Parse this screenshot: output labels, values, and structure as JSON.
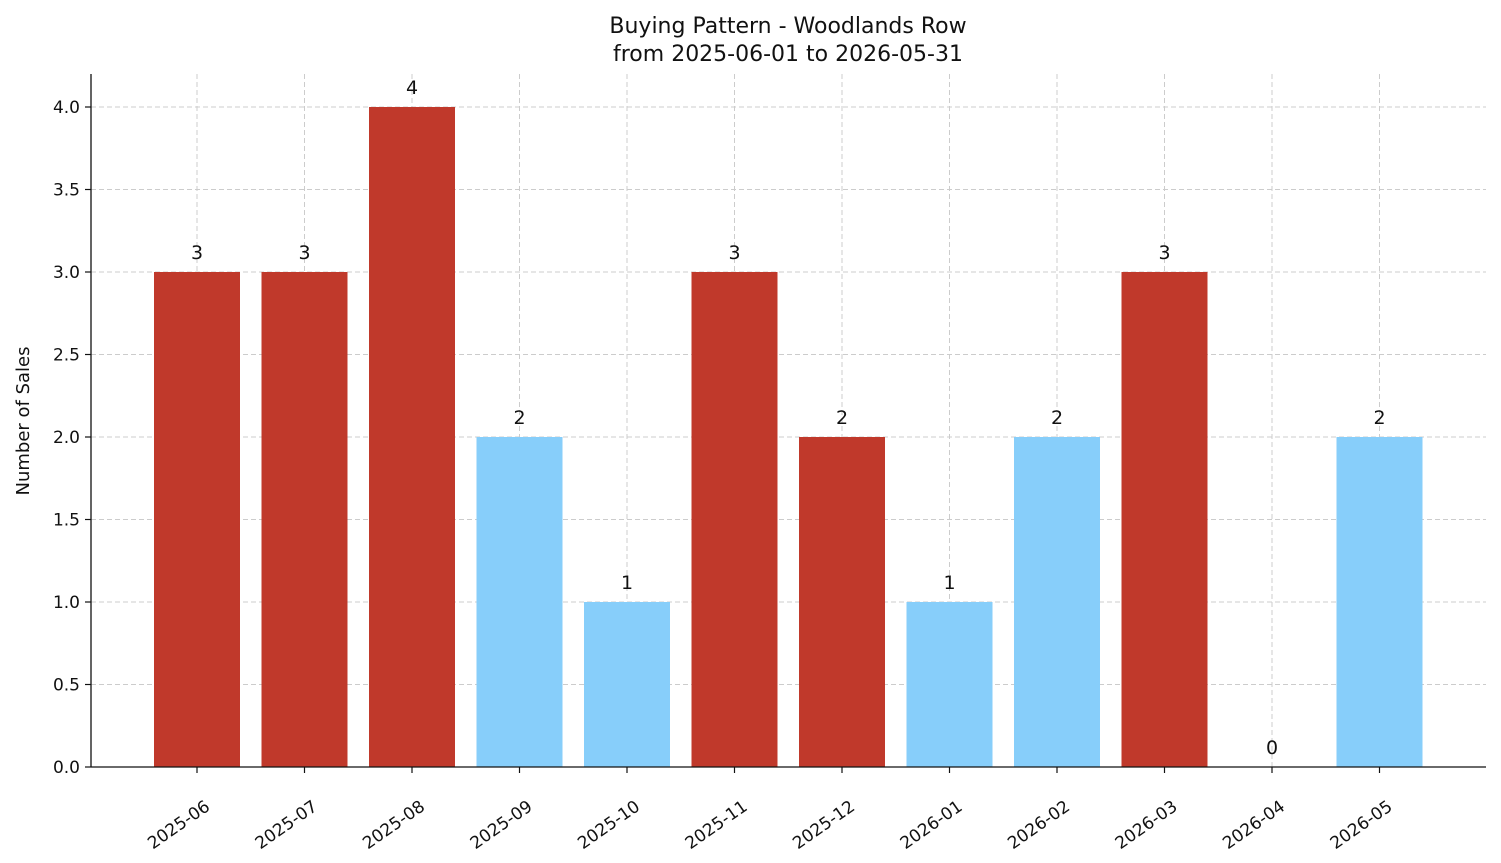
{
  "chart_data": {
    "type": "bar",
    "title": "Buying Pattern - Woodlands Row",
    "subtitle": "from 2025-06-01 to 2026-05-31",
    "xlabel": "",
    "ylabel": "Number of Sales",
    "categories": [
      "2025-06",
      "2025-07",
      "2025-08",
      "2025-09",
      "2025-10",
      "2025-11",
      "2025-12",
      "2026-01",
      "2026-02",
      "2026-03",
      "2026-04",
      "2026-05"
    ],
    "values": [
      3,
      3,
      4,
      2,
      1,
      3,
      2,
      1,
      2,
      3,
      0,
      2
    ],
    "data_labels": [
      "3",
      "3",
      "4",
      "2",
      "1",
      "3",
      "2",
      "1",
      "2",
      "3",
      "0",
      "2"
    ],
    "bar_colors": [
      "#c0392b",
      "#c0392b",
      "#c0392b",
      "#87cefa",
      "#87cefa",
      "#c0392b",
      "#c0392b",
      "#87cefa",
      "#87cefa",
      "#c0392b",
      "#87cefa",
      "#87cefa"
    ],
    "yticks": [
      "0.0",
      "0.5",
      "1.0",
      "1.5",
      "2.0",
      "2.5",
      "3.0",
      "3.5",
      "4.0"
    ],
    "ylim": [
      0,
      4.2
    ],
    "grid": true,
    "legend": "none"
  }
}
